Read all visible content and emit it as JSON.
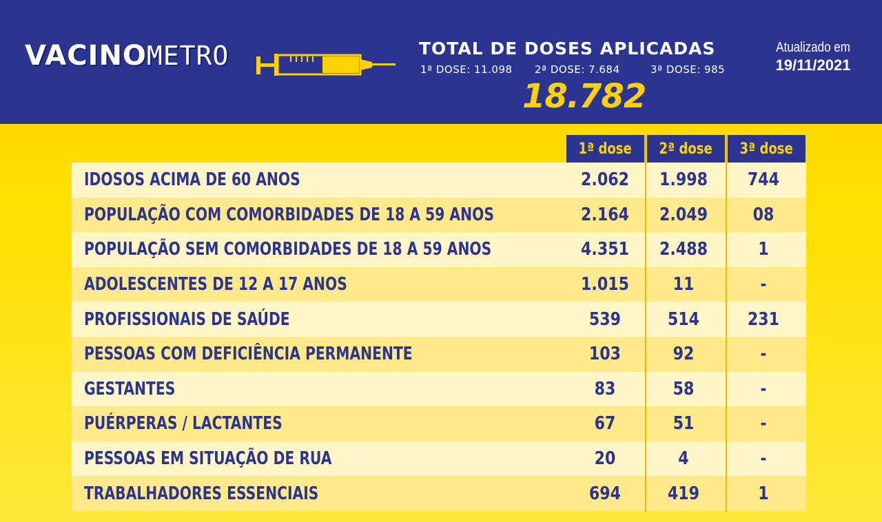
{
  "header": {
    "logo_text_bold": "VACINO",
    "logo_text_thin": "METRO",
    "title": "TOTAL DE DOSES APLICADAS",
    "dose1": "1ª DOSE: 11.098",
    "dose2": "2ª DOSE: 7.684",
    "dose3": "3ª DOSE:  985",
    "total": "18.782",
    "updated_label": "Atualizado em",
    "updated_date": "19/11/2021"
  },
  "table": {
    "columns": [
      "1ª dose",
      "2ª dose",
      "3ª dose"
    ],
    "rows": [
      {
        "label": "IDOSOS ACIMA DE 60 ANOS",
        "d1": "2.062",
        "d2": "1.998",
        "d3": "744"
      },
      {
        "label": "POPULAÇÃO COM COMORBIDADES DE 18 A 59 ANOS",
        "d1": "2.164",
        "d2": "2.049",
        "d3": "08"
      },
      {
        "label": "POPULAÇÃO SEM COMORBIDADES DE 18 A 59 ANOS",
        "d1": "4.351",
        "d2": "2.488",
        "d3": "1"
      },
      {
        "label": "ADOLESCENTES DE 12 A 17 ANOS",
        "d1": "1.015",
        "d2": "11",
        "d3": "-"
      },
      {
        "label": "PROFISSIONAIS DE SAÚDE",
        "d1": "539",
        "d2": "514",
        "d3": "231"
      },
      {
        "label": "PESSOAS COM DEFICIÊNCIA PERMANENTE",
        "d1": "103",
        "d2": "92",
        "d3": "-"
      },
      {
        "label": "GESTANTES",
        "d1": "83",
        "d2": "58",
        "d3": "-"
      },
      {
        "label": "PUÉRPERAS / LACTANTES",
        "d1": "67",
        "d2": "51",
        "d3": "-"
      },
      {
        "label": "PESSOAS EM SITUAÇÃO DE RUA",
        "d1": "20",
        "d2": "4",
        "d3": "-"
      },
      {
        "label": "TRABALHADORES ESSENCIAIS",
        "d1": "694",
        "d2": "419",
        "d3": "1"
      }
    ]
  },
  "colors": {
    "navy": "#2b3591",
    "yellow": "#ffd200",
    "row_light": "#fff6c8",
    "row_dark": "#ffe98a"
  },
  "icons": [
    "syringe-icon"
  ]
}
